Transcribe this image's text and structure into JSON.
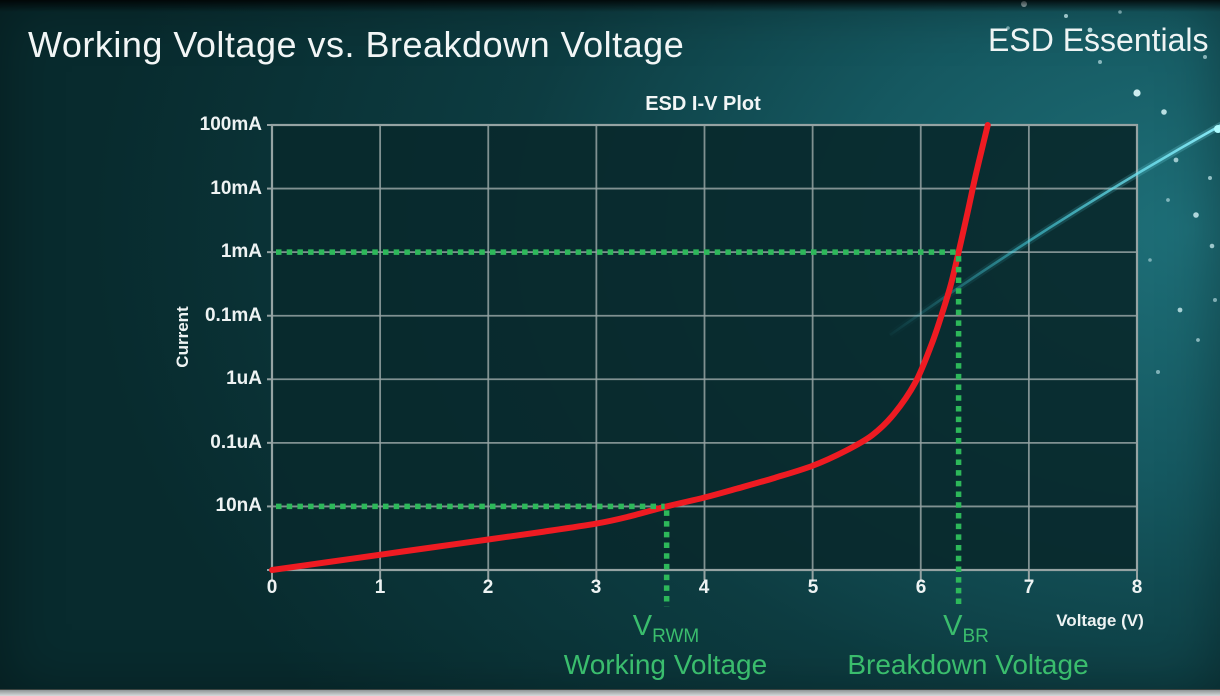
{
  "page": {
    "title": "Working Voltage vs. Breakdown Voltage",
    "brand": "ESD Essentials"
  },
  "chart_data": {
    "type": "line",
    "title": "ESD I-V Plot",
    "xlabel": "Voltage (V)",
    "ylabel": "Current",
    "grid": true,
    "x_range": [
      0,
      8
    ],
    "x_ticks": [
      "0",
      "1",
      "2",
      "3",
      "4",
      "5",
      "6",
      "7",
      "8"
    ],
    "y_tick_labels_top_to_bottom": [
      "100mA",
      "10mA",
      "1mA",
      "0.1mA",
      "1uA",
      "0.1uA",
      "10nA"
    ],
    "y_scale": "log (decade per gridline as labeled)",
    "series": [
      {
        "name": "ESD device I-V curve",
        "color": "#ee1b22",
        "level_note": "level = gridline index from top: 0=100mA, 1=10mA, 2=1mA, 3=0.1mA, 4=1uA, 5=0.1uA, 6=10nA, 7=bottom axis (~1nA)",
        "points_v_level": [
          [
            0,
            7
          ],
          [
            0.5,
            6.88
          ],
          [
            1,
            6.76
          ],
          [
            1.5,
            6.64
          ],
          [
            2,
            6.52
          ],
          [
            2.5,
            6.4
          ],
          [
            3,
            6.27
          ],
          [
            3.3,
            6.16
          ],
          [
            3.65,
            6.0
          ],
          [
            4.0,
            5.86
          ],
          [
            4.3,
            5.72
          ],
          [
            4.65,
            5.55
          ],
          [
            5.0,
            5.36
          ],
          [
            5.3,
            5.13
          ],
          [
            5.55,
            4.88
          ],
          [
            5.75,
            4.55
          ],
          [
            5.95,
            4.05
          ],
          [
            6.1,
            3.45
          ],
          [
            6.2,
            2.95
          ],
          [
            6.28,
            2.5
          ],
          [
            6.35,
            2.0
          ],
          [
            6.43,
            1.4
          ],
          [
            6.5,
            0.85
          ],
          [
            6.57,
            0.35
          ],
          [
            6.62,
            0
          ]
        ]
      }
    ],
    "markers": [
      {
        "symbol": "V",
        "subscript": "RWM",
        "caption": "Working Voltage",
        "voltage": 3.65,
        "current_label": "10nA",
        "level": 6,
        "color": "#2db85a"
      },
      {
        "symbol": "V",
        "subscript": "BR",
        "caption": "Breakdown Voltage",
        "voltage": 6.35,
        "current_label": "1mA",
        "level": 2,
        "color": "#2db85a"
      }
    ]
  },
  "colors": {
    "background_dark": "#082b2e",
    "background_light": "#1e6f78",
    "plot_fill": "#09292c",
    "grid": "#95a3a3",
    "curve_red": "#ee1b22",
    "marker_green": "#2db85a",
    "annotation_green": "#3abd6d",
    "text_white": "#f2f6f6",
    "swoosh_cyan": "#49d6e6"
  }
}
